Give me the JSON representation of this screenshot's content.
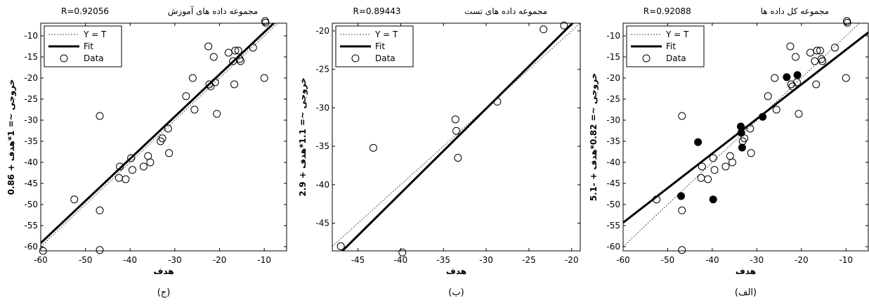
{
  "chart_data": [
    {
      "type": "scatter",
      "panel": "left",
      "title": "مجموعه داده های آموزش",
      "r_label": "R=0.92056",
      "caption": "(ج)",
      "xlabel": "هدف",
      "ylabel": "خروجی ~= 1*هدف + 0.86",
      "xlim": [
        -60,
        -5
      ],
      "ylim": [
        -61,
        -7
      ],
      "xticks": [
        -60,
        -50,
        -40,
        -30,
        -20,
        -10
      ],
      "yticks": [
        -60,
        -55,
        -50,
        -45,
        -40,
        -35,
        -30,
        -25,
        -20,
        -15,
        -10
      ],
      "legend": [
        "Y = T",
        "Fit",
        "Data"
      ],
      "legend_position": "top-left",
      "fit": {
        "slope": 1,
        "intercept": 0.86
      },
      "series": [
        {
          "name": "Data",
          "marker": "open-circle",
          "points": [
            [
              -59.5,
              -61
            ],
            [
              -52.5,
              -48.8
            ],
            [
              -46.8,
              -29
            ],
            [
              -46.8,
              -51.4
            ],
            [
              -46.8,
              -60.8
            ],
            [
              -42.3,
              -41
            ],
            [
              -42.5,
              -43.7
            ],
            [
              -41,
              -44
            ],
            [
              -39.8,
              -39
            ],
            [
              -39.5,
              -41.8
            ],
            [
              -37,
              -41
            ],
            [
              -36,
              -38.5
            ],
            [
              -35.5,
              -40
            ],
            [
              -33.2,
              -35
            ],
            [
              -32.8,
              -34.3
            ],
            [
              -31.5,
              -32
            ],
            [
              -31.3,
              -37.8
            ],
            [
              -27.5,
              -24.3
            ],
            [
              -26,
              -20
            ],
            [
              -25.6,
              -27.5
            ],
            [
              -22.5,
              -12.5
            ],
            [
              -22.3,
              -21.5
            ],
            [
              -22,
              -22
            ],
            [
              -21.3,
              -15
            ],
            [
              -21,
              -21
            ],
            [
              -20.6,
              -28.5
            ],
            [
              -18,
              -14
            ],
            [
              -17,
              -16
            ],
            [
              -16.7,
              -21.5
            ],
            [
              -16.5,
              -13.5
            ],
            [
              -15.8,
              -13.5
            ],
            [
              -15.5,
              -15.5
            ],
            [
              -15.3,
              -16
            ],
            [
              -12.5,
              -12.8
            ],
            [
              -10,
              -20
            ],
            [
              -9.8,
              -6.5
            ],
            [
              -9.7,
              -6.9
            ]
          ]
        }
      ]
    },
    {
      "type": "scatter",
      "panel": "middle",
      "title": "مجموعه داده های تست",
      "r_label": "R=0.89443",
      "caption": "(ب)",
      "xlabel": "هدف",
      "ylabel": "خروجی ~= 1.1*هدف + 2.9",
      "xlim": [
        -48,
        -19
      ],
      "ylim": [
        -48.6,
        -19
      ],
      "xticks": [
        -45,
        -40,
        -35,
        -30,
        -25,
        -20
      ],
      "yticks": [
        -45,
        -40,
        -35,
        -30,
        -25,
        -20
      ],
      "legend": [
        "Y = T",
        "Fit",
        "Data"
      ],
      "legend_position": "top-left",
      "fit": {
        "slope": 1.1,
        "intercept": 2.9
      },
      "series": [
        {
          "name": "Data",
          "marker": "open-circle",
          "points": [
            [
              -47,
              -48
            ],
            [
              -43.2,
              -35.2
            ],
            [
              -39.8,
              -48.8
            ],
            [
              -33.6,
              -31.5
            ],
            [
              -33.5,
              -33
            ],
            [
              -33.3,
              -36.5
            ],
            [
              -28.7,
              -29.2
            ],
            [
              -23.3,
              -19.8
            ],
            [
              -20.9,
              -19.3
            ]
          ]
        }
      ]
    },
    {
      "type": "scatter",
      "panel": "right",
      "title": "مجموعه کل داده ها",
      "r_label": "R=0.92088",
      "caption": "(الف)",
      "xlabel": "هدف",
      "ylabel": "خروجی ~= 0.82*هدف + -5.1",
      "xlim": [
        -60,
        -5
      ],
      "ylim": [
        -61,
        -7
      ],
      "xticks": [
        -60,
        -50,
        -40,
        -30,
        -20,
        -10
      ],
      "yticks": [
        -60,
        -55,
        -50,
        -45,
        -40,
        -35,
        -30,
        -25,
        -20,
        -15,
        -10
      ],
      "legend": [
        "Y = T",
        "Fit",
        "Data"
      ],
      "legend_position": "top-left",
      "fit": {
        "slope": 0.82,
        "intercept": -5.1
      },
      "series": [
        {
          "name": "Data",
          "marker": "open-circle",
          "points": [
            [
              -52.5,
              -48.8
            ],
            [
              -46.8,
              -29
            ],
            [
              -46.8,
              -51.4
            ],
            [
              -46.8,
              -60.8
            ],
            [
              -42.3,
              -41
            ],
            [
              -42.5,
              -43.7
            ],
            [
              -41,
              -44
            ],
            [
              -39.8,
              -39
            ],
            [
              -39.5,
              -41.8
            ],
            [
              -37,
              -41
            ],
            [
              -36,
              -38.5
            ],
            [
              -35.5,
              -40
            ],
            [
              -33.2,
              -35
            ],
            [
              -32.8,
              -34.3
            ],
            [
              -31.5,
              -32
            ],
            [
              -31.3,
              -37.8
            ],
            [
              -27.5,
              -24.3
            ],
            [
              -26,
              -20
            ],
            [
              -25.6,
              -27.5
            ],
            [
              -22.5,
              -12.5
            ],
            [
              -22.3,
              -21.5
            ],
            [
              -22,
              -22
            ],
            [
              -21.3,
              -15
            ],
            [
              -21,
              -21
            ],
            [
              -20.6,
              -28.5
            ],
            [
              -18,
              -14
            ],
            [
              -17,
              -16
            ],
            [
              -16.7,
              -21.5
            ],
            [
              -16.5,
              -13.5
            ],
            [
              -15.8,
              -13.5
            ],
            [
              -15.5,
              -15.5
            ],
            [
              -15.3,
              -16
            ],
            [
              -12.5,
              -12.8
            ],
            [
              -10,
              -20
            ],
            [
              -9.8,
              -6.5
            ],
            [
              -9.7,
              -6.9
            ]
          ]
        },
        {
          "name": "",
          "marker": "filled-circle",
          "points": [
            [
              -47,
              -48
            ],
            [
              -43.2,
              -35.2
            ],
            [
              -39.8,
              -48.8
            ],
            [
              -33.6,
              -31.5
            ],
            [
              -33.5,
              -33
            ],
            [
              -33.3,
              -36.5
            ],
            [
              -28.7,
              -29.2
            ],
            [
              -23.3,
              -19.8
            ],
            [
              -20.9,
              -19.3
            ]
          ]
        }
      ]
    }
  ]
}
